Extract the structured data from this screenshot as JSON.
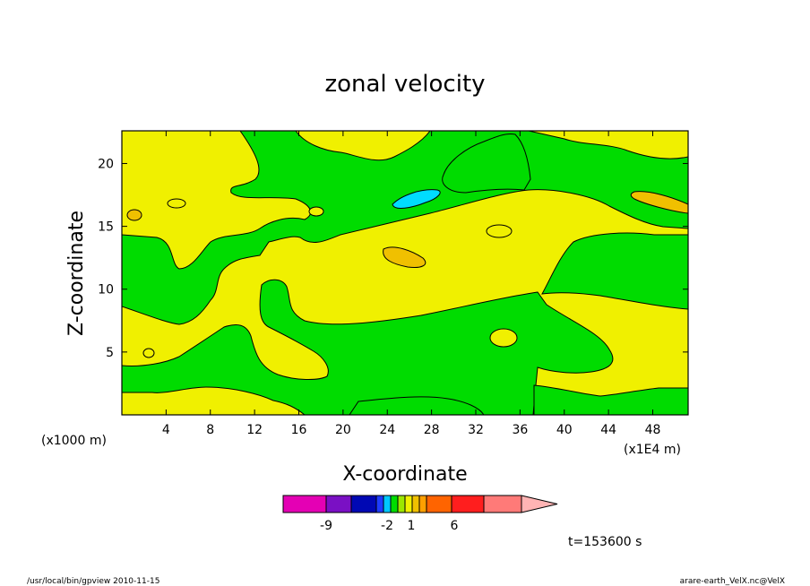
{
  "chart_data": {
    "type": "contour",
    "title": "zonal velocity",
    "xlabel": "X-coordinate",
    "ylabel": "Z-coordinate",
    "x_unit_left": "(x1000 m)",
    "x_unit_right": "(x1E4 m)",
    "xticks": [
      "4",
      "8",
      "12",
      "16",
      "20",
      "24",
      "28",
      "32",
      "36",
      "40",
      "44",
      "48"
    ],
    "xtick_values": [
      4,
      8,
      12,
      16,
      20,
      24,
      28,
      32,
      36,
      40,
      44,
      48
    ],
    "yticks": [
      "5",
      "10",
      "15",
      "20"
    ],
    "ytick_values": [
      5,
      10,
      15,
      20
    ],
    "xlim": [
      0,
      51.2
    ],
    "ylim": [
      0,
      22.6
    ],
    "colorbar": {
      "labels": [
        "-9",
        "-2",
        "1",
        "6"
      ],
      "colors": [
        "#e400b4",
        "#7a10c4",
        "#0008b4",
        "#1e3cff",
        "#00c8ff",
        "#00dc00",
        "#9ce600",
        "#f0f000",
        "#f0c000",
        "#ffa000",
        "#ff6400",
        "#ff1e1e",
        "#ff7a78",
        "#ffb4b4"
      ]
    },
    "timestamp": "t=153600 s",
    "footer_left": "/usr/local/bin/gpview  2010-11-15",
    "footer_right": "arare-earth_VelX.nc@VelX",
    "fill_colors": {
      "yellow": "#f0f000",
      "green": "#00dc00",
      "orange": "#f0c000",
      "cyan": "#00dcff"
    }
  }
}
